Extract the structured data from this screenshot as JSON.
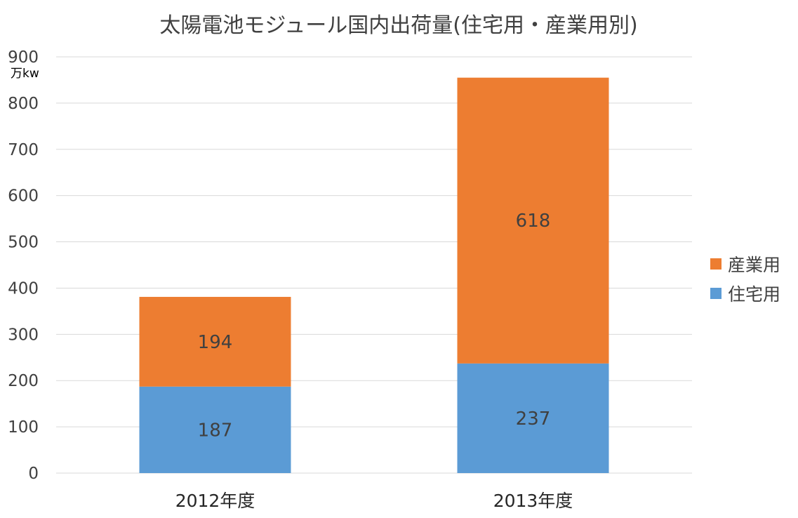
{
  "chart_data": {
    "type": "bar",
    "stacked": true,
    "title": "太陽電池モジュール国内出荷量(住宅用・産業用別)",
    "unit_label": "万kw",
    "categories": [
      "2012年度",
      "2013年度"
    ],
    "series": [
      {
        "name": "住宅用",
        "values": [
          187,
          237
        ],
        "color": "#5B9BD5"
      },
      {
        "name": "産業用",
        "values": [
          194,
          618
        ],
        "color": "#ED7D31"
      }
    ],
    "ylim": [
      0,
      900
    ],
    "yticks": [
      0,
      100,
      200,
      300,
      400,
      500,
      600,
      700,
      800,
      900
    ],
    "grid": true,
    "legend_position": "right"
  }
}
